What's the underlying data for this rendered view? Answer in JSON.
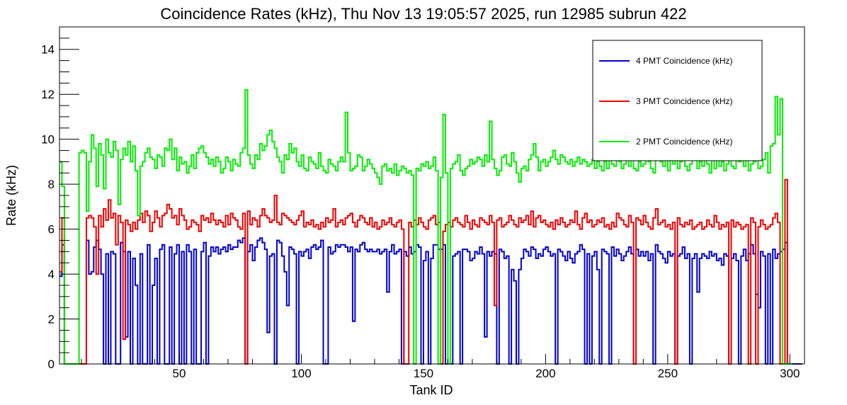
{
  "chart_data": {
    "type": "line",
    "step": true,
    "title": "Coincidence Rates (kHz), Thu Nov 13 19:05:57 2025, run 12985 subrun 422",
    "xlabel": "Tank ID",
    "ylabel": "Rate (kHz)",
    "xlim": [
      1,
      306
    ],
    "ylim": [
      0,
      15
    ],
    "x_ticks": [
      50,
      100,
      150,
      200,
      250,
      300
    ],
    "y_ticks": [
      0,
      2,
      4,
      6,
      8,
      10,
      12,
      14
    ],
    "grid": false,
    "legend_position": "top-right",
    "x_start": 1,
    "series": [
      {
        "name": "4 PMT Coincidence (kHz)",
        "color": "#0000cc",
        "values": [
          3.9,
          5.3,
          0,
          0,
          0,
          0,
          0,
          0,
          0,
          0,
          0,
          5.5,
          4.0,
          4.1,
          5.2,
          5.5,
          5.1,
          4.0,
          0,
          4.9,
          0,
          5.0,
          4.9,
          0,
          0,
          5.4,
          5.0,
          1.2,
          5.0,
          0,
          4.7,
          3.5,
          0,
          4.9,
          0,
          0,
          5.3,
          0,
          3.5,
          4.7,
          0,
          5.1,
          5.3,
          0,
          0,
          5.2,
          0,
          4.9,
          5.3,
          0,
          5.0,
          0,
          5.3,
          5.0,
          0,
          5.1,
          0,
          0,
          5.0,
          5.4,
          0,
          4.8,
          5.2,
          5.0,
          5.2,
          4.9,
          5.1,
          5.2,
          5.0,
          5.3,
          5.1,
          5.2,
          5.2,
          5.5,
          5.4,
          5.6,
          0,
          5.0,
          5.3,
          4.6,
          5.2,
          5.5,
          5.6,
          5.4,
          5.1,
          1.4,
          4.8,
          4.9,
          0,
          5.5,
          5.4,
          4.8,
          4.1,
          2.6,
          5.2,
          5.1,
          4.9,
          0,
          5.0,
          4.8,
          5.0,
          5.1,
          4.7,
          5.2,
          5.3,
          5.1,
          5.2,
          5.5,
          0,
          0,
          5.2,
          4.9,
          5.0,
          5.3,
          5.2,
          5.3,
          5.3,
          5.2,
          5.0,
          5.2,
          1.9,
          5.1,
          5.0,
          5.3,
          5.4,
          5.1,
          5.0,
          5.1,
          5.0,
          5.0,
          5.1,
          4.9,
          5.0,
          5.1,
          3.2,
          5.0,
          5.3,
          4.9,
          5.0,
          5.1,
          0,
          5.0,
          4.8,
          5.2,
          4.9,
          5.0,
          5.3,
          5.2,
          0,
          4.6,
          5.0,
          0,
          4.7,
          5.3,
          5.3,
          5.1,
          5.1,
          5.3,
          0,
          0,
          0,
          4.8,
          4.9,
          5.0,
          0,
          5.1,
          5.1,
          5.0,
          4.6,
          4.7,
          5.0,
          4.9,
          5.2,
          4.9,
          1.2,
          5.0,
          4.8,
          5.0,
          4.9,
          0,
          5.1,
          5.0,
          4.7,
          4.8,
          0,
          4.2,
          3.7,
          0,
          4.2,
          4.7,
          5.1,
          5.0,
          4.8,
          5.2,
          5.1,
          4.7,
          4.9,
          4.8,
          5.1,
          5.2,
          5.0,
          4.8,
          4.9,
          0,
          5.1,
          5.0,
          4.8,
          4.6,
          5.0,
          4.7,
          4.5,
          4.9,
          5.0,
          5.3,
          5.1,
          0,
          4.9,
          0,
          4.8,
          5.0,
          4.2,
          0,
          5.1,
          5.0,
          4.9,
          0,
          5.2,
          4.8,
          5.1,
          4.9,
          4.6,
          4.8,
          5.0,
          5.2,
          4.9,
          0,
          5.1,
          4.8,
          5.0,
          4.8,
          5.0,
          4.6,
          4.9,
          0,
          5.3,
          5.0,
          4.9,
          4.7,
          4.5,
          5.0,
          4.8,
          4.9,
          0,
          4.8,
          4.9,
          5.2,
          4.7,
          4.9,
          0,
          4.7,
          4.9,
          3.2,
          4.7,
          4.9,
          4.8,
          4.7,
          5.0,
          4.8,
          4.9,
          4.6,
          4.7,
          4.4,
          4.9,
          4.8,
          0,
          4.7,
          4.9,
          4.6,
          0,
          4.8,
          5.1,
          4.6,
          4.9,
          5.3,
          4.9,
          3.1,
          2.5,
          5.0,
          4.8,
          0,
          4.9,
          0,
          5.1,
          4.7,
          4.9,
          5.0,
          5.1,
          5.4,
          0,
          0,
          0,
          0,
          0,
          0
        ]
      },
      {
        "name": "3 PMT Coincidence (kHz)",
        "color": "#ee0000",
        "values": [
          4.1,
          6.5,
          0,
          0,
          0,
          0,
          0,
          0,
          0,
          0,
          0,
          6.5,
          6.6,
          6.5,
          6.1,
          4.0,
          6.6,
          6.1,
          6.9,
          6.4,
          7.3,
          6.5,
          6.7,
          5.3,
          6.6,
          6.3,
          1.1,
          6.4,
          6.2,
          5.9,
          6.3,
          6.0,
          6.4,
          6.7,
          6.3,
          6.8,
          6.6,
          5.9,
          6.3,
          6.8,
          6.5,
          6.1,
          6.6,
          6.7,
          7.1,
          6.9,
          6.5,
          6.6,
          6.2,
          6.9,
          6.6,
          6.4,
          6.0,
          6.1,
          6.4,
          6.3,
          6.2,
          5.9,
          6.6,
          6.4,
          6.5,
          6.3,
          6.7,
          6.4,
          6.2,
          6.4,
          6.3,
          6.1,
          6.6,
          6.2,
          6.7,
          6.5,
          6.4,
          6.1,
          6.0,
          6.7,
          0,
          6.8,
          6.2,
          6.5,
          6.4,
          6.1,
          6.6,
          6.9,
          6.6,
          6.5,
          6.3,
          6.4,
          7.5,
          6.3,
          6.2,
          6.7,
          6.6,
          6.5,
          6.4,
          6.3,
          6.2,
          6.4,
          6.6,
          6.8,
          6.1,
          6.3,
          6.2,
          6.4,
          6.1,
          6.2,
          6.0,
          6.3,
          6.1,
          6.5,
          6.3,
          6.4,
          6.9,
          6.1,
          6.3,
          6.4,
          6.2,
          6.5,
          6.6,
          6.7,
          6.3,
          6.1,
          6.4,
          6.6,
          6.5,
          6.3,
          6.2,
          6.5,
          6.1,
          6.3,
          6.0,
          6.1,
          6.4,
          6.2,
          6.3,
          6.5,
          6.2,
          6.1,
          6.3,
          6.4,
          6.0,
          0,
          0,
          6.3,
          6.1,
          6.4,
          6.2,
          6.5,
          6.3,
          6.1,
          6.0,
          6.4,
          6.5,
          6.6,
          6.2,
          6.3,
          0,
          5.9,
          6.2,
          6.3,
          6.1,
          6.4,
          6.5,
          6.3,
          6.2,
          6.1,
          6.6,
          6.3,
          6.0,
          6.4,
          6.2,
          6.1,
          6.5,
          6.4,
          6.3,
          6.2,
          6.6,
          6.3,
          2.6,
          6.4,
          6.5,
          6.1,
          6.2,
          6.3,
          6.6,
          6.4,
          6.2,
          6.1,
          6.5,
          6.3,
          6.4,
          6.6,
          6.2,
          6.8,
          6.1,
          6.5,
          6.6,
          6.3,
          6.4,
          6.2,
          6.1,
          6.3,
          6.0,
          6.4,
          6.2,
          6.5,
          6.3,
          6.1,
          6.2,
          6.4,
          6.3,
          6.8,
          6.2,
          6.0,
          6.5,
          6.7,
          6.3,
          6.4,
          6.1,
          6.2,
          6.4,
          6.3,
          6.5,
          6.1,
          6.2,
          6.0,
          6.3,
          6.1,
          6.7,
          6.5,
          6.4,
          6.2,
          6.1,
          6.6,
          6.3,
          0,
          6.5,
          6.4,
          6.2,
          6.6,
          6.3,
          6.1,
          6.0,
          6.5,
          6.9,
          6.2,
          6.3,
          6.4,
          6.1,
          6.2,
          6.0,
          6.3,
          0,
          6.5,
          6.2,
          6.1,
          6.3,
          6.2,
          6.4,
          6.0,
          6.1,
          6.2,
          6.3,
          6.0,
          6.1,
          6.4,
          6.2,
          6.1,
          6.6,
          6.3,
          6.0,
          6.2,
          6.1,
          6.3,
          0,
          6.4,
          6.1,
          6.3,
          6.2,
          6.0,
          6.1,
          6.2,
          0,
          6.5,
          6.3,
          0,
          6.1,
          6.4,
          6.2,
          6.0,
          6.1,
          6.2,
          6.5,
          6.7,
          6.3,
          0,
          0,
          8.2,
          0,
          0
        ]
      },
      {
        "name": "2 PMT Coincidence (kHz)",
        "color": "#00ee00",
        "values": [
          9.0,
          7.9,
          0,
          0,
          0,
          0,
          0,
          0,
          9.4,
          9.5,
          9.4,
          6.8,
          9.0,
          10.2,
          9.6,
          7.9,
          9.8,
          9.3,
          7.8,
          10.0,
          9.4,
          9.2,
          9.9,
          9.5,
          7.1,
          9.1,
          9.6,
          9.3,
          9.9,
          9.0,
          9.7,
          8.6,
          6.6,
          8.8,
          9.0,
          9.4,
          9.6,
          9.2,
          9.1,
          8.7,
          9.3,
          9.2,
          8.8,
          9.6,
          9.5,
          10.0,
          9.1,
          9.6,
          8.6,
          9.2,
          8.9,
          9.0,
          8.5,
          8.8,
          9.3,
          8.7,
          9.4,
          9.6,
          9.7,
          9.4,
          9.2,
          8.9,
          9.1,
          8.8,
          9.2,
          9.0,
          8.5,
          8.7,
          9.2,
          9.0,
          8.6,
          9.1,
          8.9,
          8.8,
          9.4,
          9.6,
          12.2,
          9.3,
          8.9,
          8.7,
          9.3,
          9.1,
          9.8,
          9.5,
          9.7,
          10.2,
          10.4,
          9.9,
          9.6,
          9.2,
          9.0,
          8.5,
          9.3,
          9.1,
          9.8,
          9.4,
          9.6,
          9.0,
          8.8,
          9.3,
          8.7,
          8.6,
          9.2,
          9.0,
          8.9,
          8.7,
          9.4,
          8.8,
          8.6,
          8.5,
          9.1,
          8.9,
          8.8,
          8.6,
          9.0,
          9.2,
          9.0,
          11.2,
          9.4,
          8.6,
          8.7,
          8.8,
          9.3,
          9.2,
          8.6,
          8.8,
          9.1,
          8.9,
          8.7,
          8.5,
          8.3,
          8.0,
          8.8,
          8.9,
          8.6,
          8.7,
          8.5,
          8.9,
          8.4,
          8.6,
          8.8,
          8.7,
          8.5,
          8.6,
          8.4,
          0,
          8.7,
          8.6,
          8.9,
          8.8,
          9.0,
          8.7,
          8.8,
          9.2,
          8.6,
          0,
          8.3,
          11.1,
          8.5,
          0,
          8.7,
          8.9,
          9.0,
          9.3,
          8.6,
          8.4,
          8.7,
          8.8,
          9.1,
          8.9,
          9.0,
          9.2,
          9.1,
          8.8,
          9.3,
          9.0,
          10.8,
          9.1,
          8.7,
          8.4,
          8.6,
          9.2,
          9.3,
          8.9,
          8.8,
          9.4,
          9.0,
          8.5,
          8.1,
          8.7,
          8.8,
          8.6,
          9.1,
          9.3,
          9.8,
          9.2,
          8.6,
          9.0,
          9.1,
          8.8,
          9.0,
          9.2,
          9.5,
          9.1,
          8.9,
          9.3,
          9.2,
          9.0,
          8.9,
          9.1,
          8.8,
          9.0,
          9.2,
          8.9,
          9.1,
          9.0,
          8.8,
          8.9,
          9.1,
          8.7,
          9.0,
          8.8,
          8.6,
          9.0,
          8.7,
          9.2,
          8.9,
          8.8,
          9.1,
          9.0,
          8.7,
          8.9,
          9.2,
          8.8,
          9.1,
          8.7,
          8.6,
          9.0,
          8.8,
          8.9,
          9.2,
          9.0,
          8.7,
          8.5,
          9.1,
          9.3,
          9.0,
          8.8,
          9.2,
          8.6,
          9.1,
          8.9,
          9.3,
          8.7,
          9.0,
          9.2,
          8.8,
          8.6,
          8.9,
          9.1,
          9.2,
          8.7,
          9.0,
          8.8,
          9.3,
          8.9,
          8.5,
          9.1,
          8.7,
          9.2,
          8.8,
          9.0,
          8.6,
          8.9,
          9.1,
          8.8,
          8.7,
          9.2,
          9.0,
          9.4,
          8.8,
          9.1,
          8.6,
          8.9,
          9.0,
          9.3,
          8.7,
          8.8,
          9.1,
          9.4,
          8.5,
          9.7,
          9.8,
          11.9,
          10.2,
          11.8,
          0,
          0,
          0,
          0
        ]
      }
    ]
  }
}
